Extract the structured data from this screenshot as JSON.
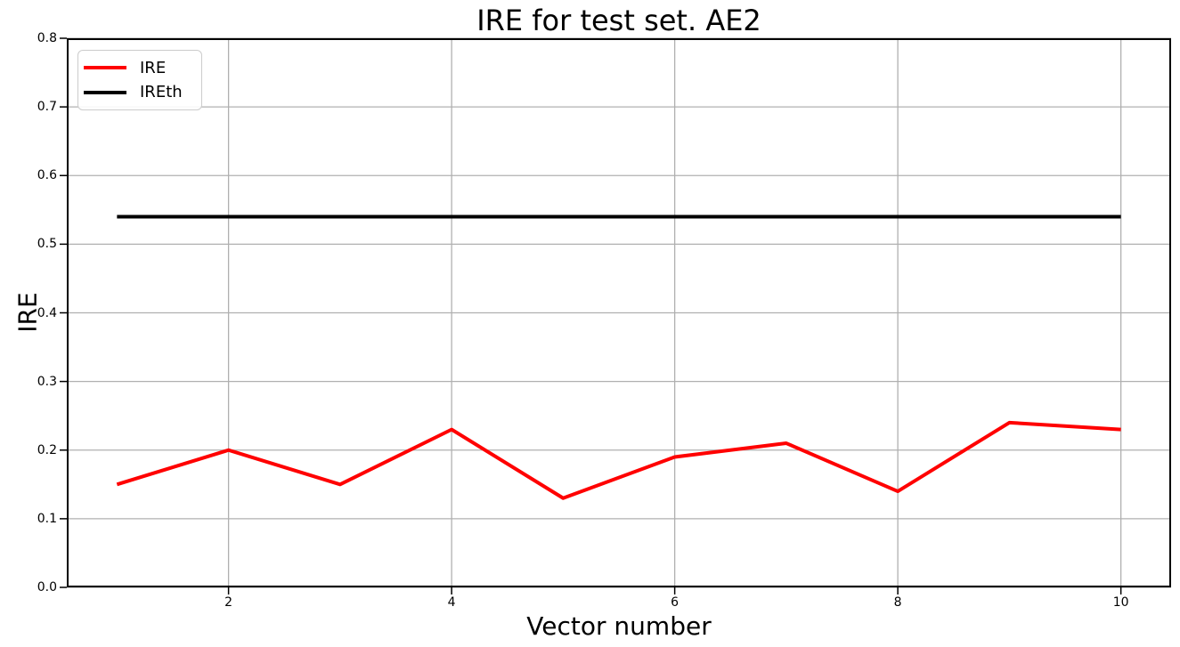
{
  "figure": {
    "background": "#ffffff"
  },
  "chart_data": {
    "type": "line",
    "title": "IRE for test set. AE2",
    "xlabel": "Vector number",
    "ylabel": "IRE",
    "x": [
      1,
      2,
      3,
      4,
      5,
      6,
      7,
      8,
      9,
      10
    ],
    "series": [
      {
        "name": "IRE",
        "color": "#ff0000",
        "linewidth": 4,
        "values": [
          0.15,
          0.2,
          0.15,
          0.23,
          0.13,
          0.19,
          0.21,
          0.14,
          0.24,
          0.23
        ]
      },
      {
        "name": "IREth",
        "color": "#000000",
        "linewidth": 4,
        "values": [
          0.54,
          0.54,
          0.54,
          0.54,
          0.54,
          0.54,
          0.54,
          0.54,
          0.54,
          0.54
        ]
      }
    ],
    "xlim": [
      0.55,
      10.45
    ],
    "ylim": [
      0.0,
      0.8
    ],
    "xticks": [
      2,
      4,
      6,
      8,
      10
    ],
    "xtick_labels": [
      "2",
      "4",
      "6",
      "8",
      "10"
    ],
    "yticks": [
      0.0,
      0.1,
      0.2,
      0.3,
      0.4,
      0.5,
      0.6,
      0.7,
      0.8
    ],
    "ytick_labels": [
      "0.0",
      "0.1",
      "0.2",
      "0.3",
      "0.4",
      "0.5",
      "0.6",
      "0.7",
      "0.8"
    ],
    "grid": true,
    "grid_color": "#b0b0b0",
    "spine_color": "#000000",
    "legend_position": "upper left",
    "legend_entries": [
      "IRE",
      "IREth"
    ]
  }
}
